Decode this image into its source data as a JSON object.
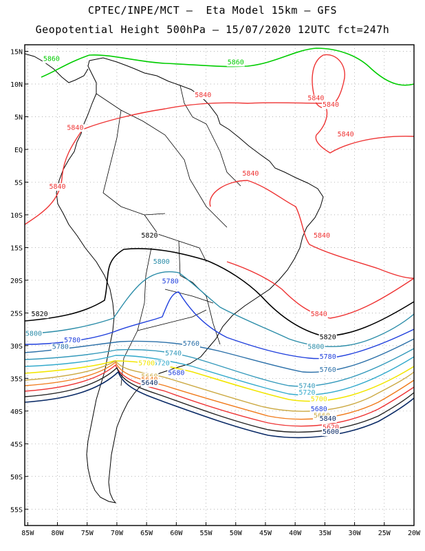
{
  "header": {
    "line1": "CPTEC/INPE/MCT –  Eta Model 15km – GFS",
    "line2": "Geopotential Height 500hPa – 15/07/2020 12UTC fct=247h"
  },
  "map": {
    "lon_range": [
      -85.5,
      -20
    ],
    "lat_range": [
      -57.5,
      16
    ],
    "lat_labels": [
      "15N",
      "10N",
      "5N",
      "EQ",
      "5S",
      "10S",
      "15S",
      "20S",
      "25S",
      "30S",
      "35S",
      "40S",
      "45S",
      "50S",
      "55S"
    ],
    "lat_values": [
      15,
      10,
      5,
      0,
      -5,
      -10,
      -15,
      -20,
      -25,
      -30,
      -35,
      -40,
      -45,
      -50,
      -55
    ],
    "lon_labels": [
      "85W",
      "80W",
      "75W",
      "70W",
      "65W",
      "60W",
      "55W",
      "50W",
      "45W",
      "40W",
      "35W",
      "30W",
      "25W",
      "20W"
    ],
    "lon_values": [
      -85,
      -80,
      -75,
      -70,
      -65,
      -60,
      -55,
      -50,
      -45,
      -40,
      -35,
      -30,
      -25,
      -20
    ],
    "grid": true,
    "frame_color": "#000000",
    "grid_color": "#999999"
  },
  "contours": [
    {
      "level": "5860",
      "color": "#00cc00"
    },
    {
      "level": "5840",
      "color": "#ee3333"
    },
    {
      "level": "5820",
      "color": "#000000"
    },
    {
      "level": "5800",
      "color": "#2a8ca8"
    },
    {
      "level": "5780",
      "color": "#1f3fdd"
    },
    {
      "level": "5760",
      "color": "#2a6fa8"
    },
    {
      "level": "5740",
      "color": "#3399bb"
    },
    {
      "level": "5720",
      "color": "#33aacc"
    },
    {
      "level": "5700",
      "color": "#f2e600"
    },
    {
      "level": "5680",
      "color": "#ccaa44"
    },
    {
      "level": "5660",
      "color": "#f07a1a"
    },
    {
      "level": "5640",
      "color": "#ee3333"
    },
    {
      "level": "5620",
      "color": "#222222"
    },
    {
      "level": "5600",
      "color": "#0a2a66"
    }
  ],
  "contour_labels": [
    {
      "text": "5860",
      "lon": -81.0,
      "lat": 13.5,
      "color": "#00cc00"
    },
    {
      "text": "5860",
      "lon": -50.0,
      "lat": 13.0,
      "color": "#00cc00"
    },
    {
      "text": "5840",
      "lon": -55.5,
      "lat": 8.0,
      "color": "#ee3333"
    },
    {
      "text": "5840",
      "lon": -36.5,
      "lat": 7.5,
      "color": "#ee3333"
    },
    {
      "text": "5840",
      "lon": -34.0,
      "lat": 6.5,
      "color": "#ee3333"
    },
    {
      "text": "5840",
      "lon": -31.5,
      "lat": 2.0,
      "color": "#ee3333"
    },
    {
      "text": "5840",
      "lon": -77.0,
      "lat": 3.0,
      "color": "#ee3333"
    },
    {
      "text": "5840",
      "lon": -80.0,
      "lat": -6.0,
      "color": "#ee3333"
    },
    {
      "text": "5840",
      "lon": -47.5,
      "lat": -4.0,
      "color": "#ee3333"
    },
    {
      "text": "5840",
      "lon": -35.5,
      "lat": -13.5,
      "color": "#ee3333"
    },
    {
      "text": "5840",
      "lon": -36.0,
      "lat": -25.5,
      "color": "#ee3333"
    },
    {
      "text": "5820",
      "lon": -64.5,
      "lat": -13.5,
      "color": "#000000"
    },
    {
      "text": "5820",
      "lon": -83.0,
      "lat": -25.5,
      "color": "#000000"
    },
    {
      "text": "5820",
      "lon": -34.5,
      "lat": -29.0,
      "color": "#000000"
    },
    {
      "text": "5800",
      "lon": -62.5,
      "lat": -17.5,
      "color": "#2a8ca8"
    },
    {
      "text": "5800",
      "lon": -84.0,
      "lat": -28.5,
      "color": "#2a8ca8"
    },
    {
      "text": "5800",
      "lon": -36.5,
      "lat": -30.5,
      "color": "#2a8ca8"
    },
    {
      "text": "5780",
      "lon": -61.0,
      "lat": -20.5,
      "color": "#1f3fdd"
    },
    {
      "text": "5780",
      "lon": -77.5,
      "lat": -29.5,
      "color": "#1f3fdd"
    },
    {
      "text": "5780",
      "lon": -34.5,
      "lat": -32.0,
      "color": "#1f3fdd"
    },
    {
      "text": "5780",
      "lon": -79.5,
      "lat": -30.5,
      "color": "#2a6fa8"
    },
    {
      "text": "5760",
      "lon": -57.5,
      "lat": -30.0,
      "color": "#2a6fa8"
    },
    {
      "text": "5760",
      "lon": -34.5,
      "lat": -34.0,
      "color": "#2a6fa8"
    },
    {
      "text": "5740",
      "lon": -60.5,
      "lat": -31.5,
      "color": "#3399bb"
    },
    {
      "text": "5740",
      "lon": -38.0,
      "lat": -36.5,
      "color": "#3399bb"
    },
    {
      "text": "5720",
      "lon": -62.5,
      "lat": -33.0,
      "color": "#33aacc"
    },
    {
      "text": "5720",
      "lon": -38.0,
      "lat": -37.5,
      "color": "#33aacc"
    },
    {
      "text": "5700",
      "lon": -65.0,
      "lat": -33.0,
      "color": "#f2e600"
    },
    {
      "text": "5700",
      "lon": -36.0,
      "lat": -38.5,
      "color": "#f2e600"
    },
    {
      "text": "5680",
      "lon": -60.0,
      "lat": -34.5,
      "color": "#1f3fdd"
    },
    {
      "text": "5680",
      "lon": -36.0,
      "lat": -40.0,
      "color": "#1f3fdd"
    },
    {
      "text": "5660",
      "lon": -64.5,
      "lat": -35.0,
      "color": "#ccaa44"
    },
    {
      "text": "5660",
      "lon": -35.5,
      "lat": -41.0,
      "color": "#ccaa44"
    },
    {
      "text": "5640",
      "lon": -64.5,
      "lat": -35.5,
      "color": "#f07a1a"
    },
    {
      "text": "5840",
      "lon": -34.5,
      "lat": -41.5,
      "color": "#0a2a66"
    },
    {
      "text": "5640",
      "lon": -64.5,
      "lat": -36.0,
      "color": "#0a2a66"
    },
    {
      "text": "5620",
      "lon": -34.0,
      "lat": -42.8,
      "color": "#ee3333"
    },
    {
      "text": "5600",
      "lon": -34.0,
      "lat": -43.5,
      "color": "#0a2a66"
    }
  ]
}
